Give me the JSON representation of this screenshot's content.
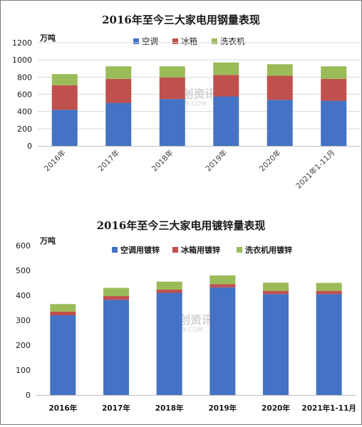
{
  "colors": {
    "ac": "#4472C4",
    "fridge": "#C0504D",
    "washer": "#9BBB59",
    "grid": "#d9d9d9",
    "axis": "#bfbfbf"
  },
  "watermark": {
    "text": "卓创资讯",
    "sub": "SCI99.COM"
  },
  "chart_data": [
    {
      "type": "bar",
      "stacked": true,
      "title": "2016年至今三大家电用钢量表现",
      "unit": "万吨",
      "categories": [
        "2016年",
        "2017年",
        "2018年",
        "2019年",
        "2020年",
        "2021年1-11月"
      ],
      "ylim": [
        0,
        1200
      ],
      "yticks": [
        "0",
        "200",
        "400",
        "600",
        "800",
        "1000",
        "1200"
      ],
      "grid": true,
      "legend_position": "top",
      "series": [
        {
          "name": "空调",
          "values": [
            420,
            500,
            545,
            575,
            535,
            525
          ]
        },
        {
          "name": "冰箱",
          "values": [
            285,
            280,
            250,
            250,
            280,
            255
          ]
        },
        {
          "name": "洗衣机",
          "values": [
            130,
            145,
            130,
            145,
            135,
            145
          ]
        }
      ]
    },
    {
      "type": "bar",
      "stacked": true,
      "title": "2016年至今三大家电用镀锌量表现",
      "unit": "万吨",
      "categories": [
        "2016年",
        "2017年",
        "2018年",
        "2019年",
        "2020年",
        "2021年1-11月"
      ],
      "ylim": [
        0,
        600
      ],
      "yticks": [
        "0",
        "100",
        "200",
        "300",
        "400",
        "500",
        "600"
      ],
      "grid": false,
      "legend_position": "top",
      "series": [
        {
          "name": "空调用镀锌",
          "values": [
            320,
            382,
            410,
            432,
            405,
            405
          ]
        },
        {
          "name": "冰箱用镀锌",
          "values": [
            15,
            15,
            13,
            13,
            13,
            13
          ]
        },
        {
          "name": "洗衣机用镀锌",
          "values": [
            30,
            33,
            32,
            35,
            33,
            32
          ]
        }
      ]
    }
  ]
}
